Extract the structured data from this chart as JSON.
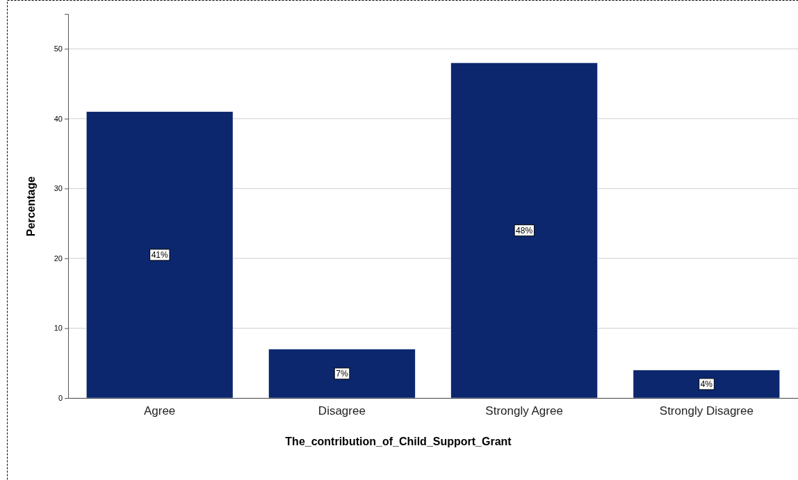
{
  "chart_data": {
    "type": "bar",
    "xlabel": "The_contribution_of_Child_Support_Grant",
    "ylabel": "Percentage",
    "categories": [
      "Agree",
      "Disagree",
      "Strongly Agree",
      "Strongly Disagree"
    ],
    "values": [
      41,
      7,
      48,
      4
    ],
    "value_labels": [
      "41%",
      "7%",
      "48%",
      "4%"
    ],
    "color": "#0c276e",
    "ylim": [
      0,
      55
    ],
    "yticks": [
      0,
      10,
      20,
      30,
      40,
      50
    ],
    "grid": "y"
  }
}
